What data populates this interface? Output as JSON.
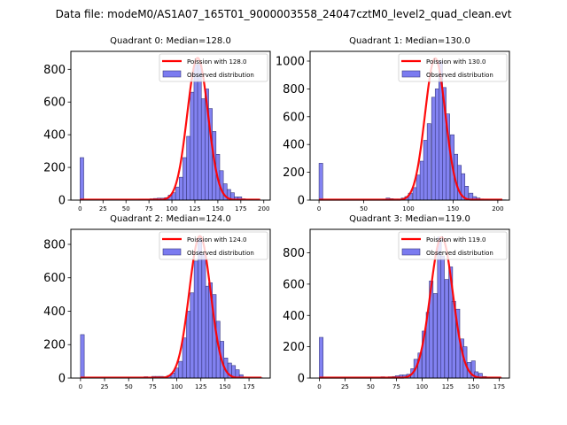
{
  "suptitle": "Data file: modeM0/AS1A07_165T01_9000003558_24047cztM0_level2_quad_clean.evt",
  "colors": {
    "bar_fill": "#7b7bf0",
    "bar_edge": "#3a3a80",
    "poisson_line": "#ff0000"
  },
  "chart_data": [
    {
      "type": "bar",
      "title": "Quadrant 0: Median=128.0",
      "legend": [
        "Poission with 128.0",
        "Observed distribution"
      ],
      "legend_position": "top-right",
      "xlim": [
        -10,
        207
      ],
      "ylim": [
        0,
        910
      ],
      "xticks": [
        0,
        25,
        50,
        75,
        100,
        125,
        150,
        175,
        200
      ],
      "yticks": [
        0,
        200,
        400,
        600,
        800
      ],
      "bin_width": 4,
      "bins": [
        [
          0,
          260
        ],
        [
          64,
          5
        ],
        [
          68,
          5
        ],
        [
          72,
          5
        ],
        [
          76,
          8
        ],
        [
          80,
          10
        ],
        [
          84,
          12
        ],
        [
          88,
          12
        ],
        [
          92,
          15
        ],
        [
          96,
          30
        ],
        [
          100,
          45
        ],
        [
          104,
          80
        ],
        [
          108,
          140
        ],
        [
          112,
          260
        ],
        [
          116,
          390
        ],
        [
          120,
          660
        ],
        [
          124,
          830
        ],
        [
          128,
          830
        ],
        [
          132,
          620
        ],
        [
          136,
          680
        ],
        [
          140,
          560
        ],
        [
          144,
          420
        ],
        [
          148,
          280
        ],
        [
          152,
          180
        ],
        [
          156,
          100
        ],
        [
          160,
          65
        ],
        [
          164,
          45
        ],
        [
          168,
          20
        ],
        [
          172,
          20
        ],
        [
          176,
          8
        ],
        [
          180,
          5
        ],
        [
          184,
          3
        ],
        [
          188,
          2
        ],
        [
          192,
          2
        ]
      ],
      "poisson_mean": 128.0,
      "poisson_peak": 870,
      "curve_range": [
        0,
        196
      ]
    },
    {
      "type": "bar",
      "title": "Quadrant 1: Median=130.0",
      "legend": [
        "Poission with 130.0",
        "Observed distribution"
      ],
      "legend_position": "top-right",
      "xlim": [
        -10,
        213
      ],
      "ylim": [
        0,
        1070
      ],
      "xticks": [
        0,
        50,
        100,
        150,
        200
      ],
      "yticks": [
        0,
        200,
        400,
        600,
        800,
        1000
      ],
      "bin_width": 4.2,
      "bins": [
        [
          0,
          265
        ],
        [
          71,
          5
        ],
        [
          75,
          15
        ],
        [
          79,
          10
        ],
        [
          84,
          8
        ],
        [
          88,
          8
        ],
        [
          92,
          15
        ],
        [
          96,
          25
        ],
        [
          100,
          50
        ],
        [
          105,
          90
        ],
        [
          109,
          180
        ],
        [
          113,
          280
        ],
        [
          117,
          430
        ],
        [
          121,
          550
        ],
        [
          126,
          740
        ],
        [
          130,
          800
        ],
        [
          134,
          1000
        ],
        [
          138,
          810
        ],
        [
          142,
          620
        ],
        [
          147,
          470
        ],
        [
          151,
          330
        ],
        [
          155,
          250
        ],
        [
          159,
          190
        ],
        [
          163,
          100
        ],
        [
          168,
          50
        ],
        [
          172,
          25
        ],
        [
          176,
          15
        ],
        [
          180,
          8
        ],
        [
          185,
          5
        ],
        [
          189,
          3
        ],
        [
          193,
          2
        ],
        [
          197,
          2
        ],
        [
          201,
          2
        ],
        [
          205,
          2
        ]
      ],
      "poisson_mean": 130.0,
      "poisson_peak": 1020,
      "curve_range": [
        0,
        205
      ]
    },
    {
      "type": "bar",
      "title": "Quadrant 2: Median=124.0",
      "legend": [
        "Poission with 124.0",
        "Observed distribution"
      ],
      "legend_position": "top-right",
      "xlim": [
        -10,
        197
      ],
      "ylim": [
        0,
        890
      ],
      "xticks": [
        0,
        25,
        50,
        75,
        100,
        125,
        150,
        175
      ],
      "yticks": [
        0,
        200,
        400,
        600,
        800
      ],
      "bin_width": 3.9,
      "bins": [
        [
          0,
          260
        ],
        [
          66,
          8
        ],
        [
          74,
          10
        ],
        [
          78,
          10
        ],
        [
          82,
          10
        ],
        [
          86,
          8
        ],
        [
          90,
          15
        ],
        [
          94,
          30
        ],
        [
          98,
          60
        ],
        [
          102,
          100
        ],
        [
          106,
          240
        ],
        [
          110,
          400
        ],
        [
          114,
          510
        ],
        [
          118,
          700
        ],
        [
          122,
          840
        ],
        [
          126,
          740
        ],
        [
          130,
          550
        ],
        [
          133,
          570
        ],
        [
          137,
          500
        ],
        [
          141,
          340
        ],
        [
          145,
          220
        ],
        [
          149,
          120
        ],
        [
          153,
          90
        ],
        [
          157,
          75
        ],
        [
          161,
          50
        ],
        [
          165,
          20
        ],
        [
          169,
          5
        ],
        [
          173,
          3
        ],
        [
          177,
          2
        ],
        [
          181,
          2
        ],
        [
          185,
          2
        ]
      ],
      "poisson_mean": 124.0,
      "poisson_peak": 850,
      "curve_range": [
        0,
        188
      ]
    },
    {
      "type": "bar",
      "title": "Quadrant 3: Median=119.0",
      "legend": [
        "Poission with 119.0",
        "Observed distribution"
      ],
      "legend_position": "top-right",
      "xlim": [
        -9,
        185
      ],
      "ylim": [
        0,
        950
      ],
      "xticks": [
        0,
        25,
        50,
        75,
        100,
        125,
        150,
        175
      ],
      "yticks": [
        0,
        200,
        400,
        600,
        800
      ],
      "bin_width": 3.7,
      "bins": [
        [
          0,
          260
        ],
        [
          60,
          8
        ],
        [
          67,
          8
        ],
        [
          71,
          10
        ],
        [
          74,
          15
        ],
        [
          78,
          20
        ],
        [
          81,
          20
        ],
        [
          85,
          25
        ],
        [
          89,
          60
        ],
        [
          92,
          120
        ],
        [
          96,
          160
        ],
        [
          100,
          300
        ],
        [
          104,
          420
        ],
        [
          107,
          620
        ],
        [
          111,
          540
        ],
        [
          115,
          900
        ],
        [
          118,
          780
        ],
        [
          122,
          630
        ],
        [
          126,
          710
        ],
        [
          129,
          490
        ],
        [
          133,
          440
        ],
        [
          137,
          250
        ],
        [
          140,
          200
        ],
        [
          144,
          100
        ],
        [
          148,
          110
        ],
        [
          151,
          40
        ],
        [
          155,
          30
        ],
        [
          159,
          10
        ],
        [
          162,
          5
        ],
        [
          166,
          3
        ],
        [
          170,
          2
        ],
        [
          174,
          2
        ]
      ],
      "poisson_mean": 119.0,
      "poisson_peak": 900,
      "curve_range": [
        0,
        177
      ]
    }
  ]
}
